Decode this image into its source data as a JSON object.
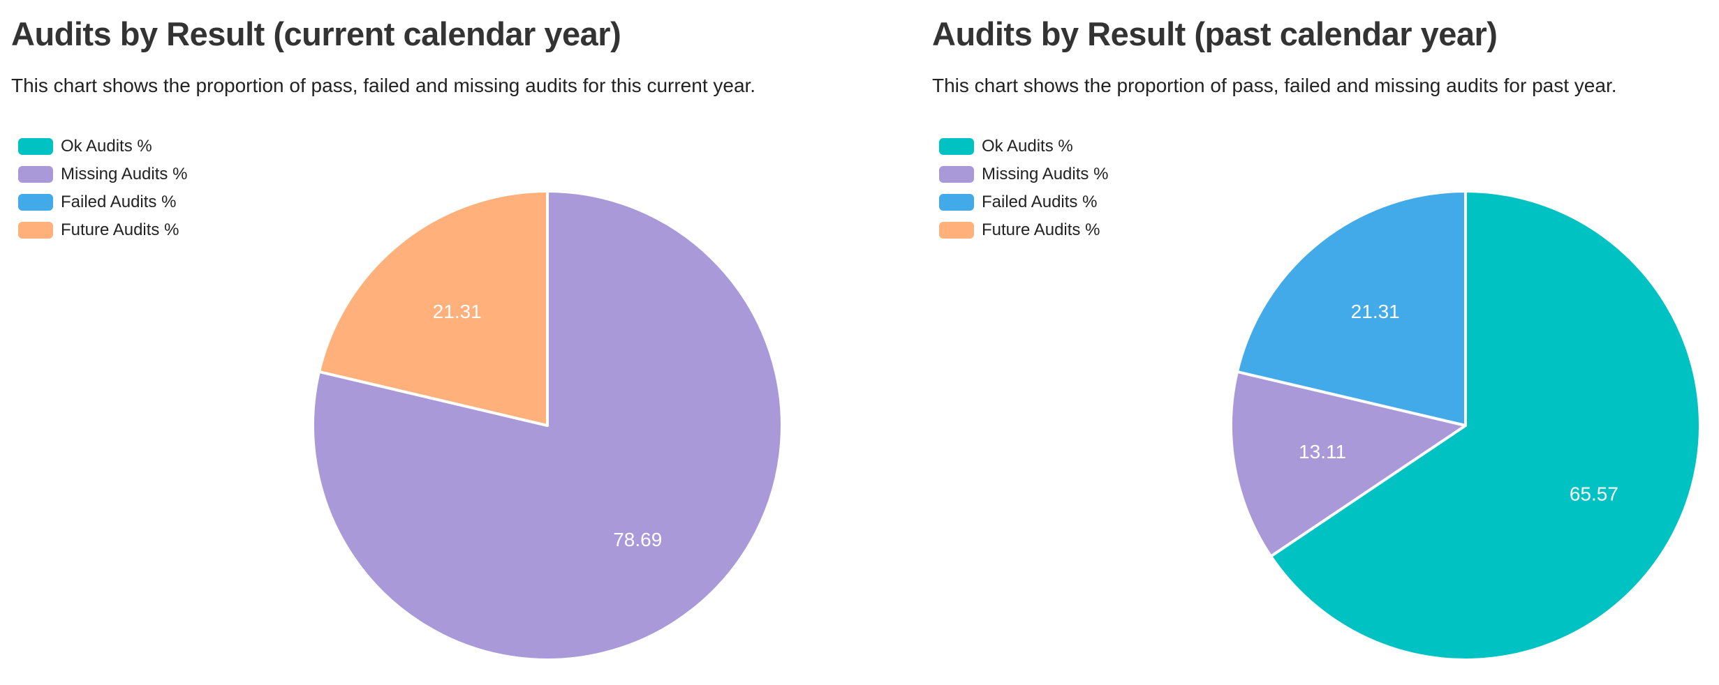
{
  "chart_data": [
    {
      "type": "pie",
      "title": "Audits by Result (current calendar year)",
      "subtitle": "This chart shows the proportion of pass, failed and missing audits for this current year.",
      "categories": [
        "Ok Audits %",
        "Missing Audits %",
        "Failed Audits %",
        "Future Audits %"
      ],
      "values": [
        0,
        78.69,
        0,
        21.31
      ],
      "value_labels": [
        "",
        "78.69",
        "",
        "21.31"
      ],
      "colors": [
        "#00c2c2",
        "#aa99d8",
        "#42aae8",
        "#ffb07b"
      ],
      "legend_position": "top-left",
      "start_angle": "top",
      "direction": "clockwise"
    },
    {
      "type": "pie",
      "title": "Audits by Result (past calendar year)",
      "subtitle": "This chart shows the proportion of pass, failed and missing audits for past year.",
      "categories": [
        "Ok Audits %",
        "Missing Audits %",
        "Failed Audits %",
        "Future Audits %"
      ],
      "values": [
        65.57,
        13.11,
        21.31,
        0
      ],
      "value_labels": [
        "65.57",
        "13.11",
        "21.31",
        ""
      ],
      "colors": [
        "#00c2c2",
        "#aa99d8",
        "#42aae8",
        "#ffb07b"
      ],
      "legend_position": "top-left",
      "start_angle": "top",
      "direction": "clockwise"
    }
  ]
}
